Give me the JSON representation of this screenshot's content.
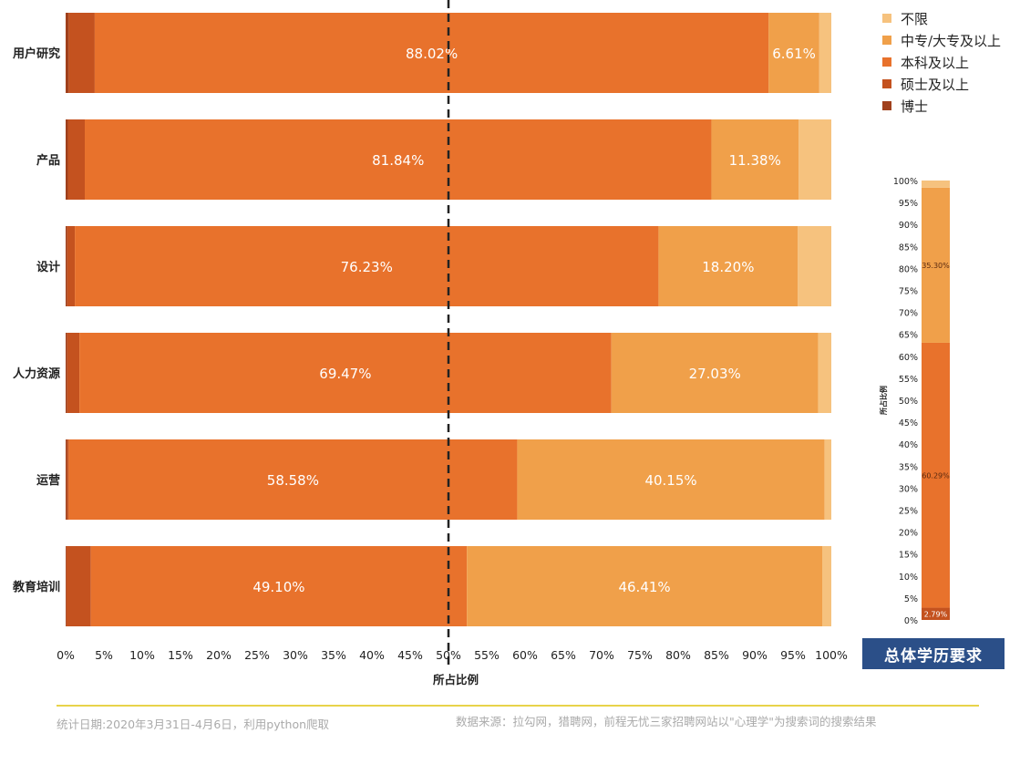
{
  "chart_data": [
    {
      "type": "bar",
      "stacked": true,
      "orientation": "horizontal",
      "xlabel": "所占比例",
      "xlim": [
        0,
        100
      ],
      "x_ticks": [
        "0%",
        "5%",
        "10%",
        "15%",
        "20%",
        "25%",
        "30%",
        "35%",
        "40%",
        "45%",
        "50%",
        "55%",
        "60%",
        "65%",
        "70%",
        "75%",
        "80%",
        "85%",
        "90%",
        "95%",
        "100%"
      ],
      "reference_line": 50,
      "categories": [
        "用户研究",
        "产品",
        "设计",
        "人力资源",
        "运营",
        "教育培训"
      ],
      "series": [
        {
          "name": "博士",
          "color": "#a0401c",
          "values": [
            0.4,
            0.3,
            0.2,
            0.2,
            0.2,
            0.1
          ]
        },
        {
          "name": "硕士及以上",
          "color": "#c4521f",
          "values": [
            3.4,
            2.2,
            1.0,
            1.6,
            0.2,
            3.2
          ]
        },
        {
          "name": "本科及以上",
          "color": "#e8722c",
          "values": [
            88.02,
            81.84,
            76.23,
            69.47,
            58.58,
            49.1
          ]
        },
        {
          "name": "中专/大专及以上",
          "color": "#f0a04a",
          "values": [
            6.61,
            11.38,
            18.2,
            27.03,
            40.15,
            46.41
          ]
        },
        {
          "name": "不限",
          "color": "#f6c27e",
          "values": [
            1.57,
            4.28,
            4.37,
            1.7,
            0.87,
            1.19
          ]
        }
      ],
      "labels": [
        [
          "88.02%",
          "6.61%"
        ],
        [
          "81.84%",
          "11.38%"
        ],
        [
          "76.23%",
          "18.20%"
        ],
        [
          "69.47%",
          "27.03%"
        ],
        [
          "58.58%",
          "40.15%"
        ],
        [
          "49.10%",
          "46.41%"
        ]
      ]
    },
    {
      "type": "bar",
      "stacked": true,
      "orientation": "vertical",
      "title": "总体学历要求",
      "ylabel": "所占比例",
      "ylim": [
        0,
        100
      ],
      "y_ticks": [
        "0%",
        "5%",
        "10%",
        "15%",
        "20%",
        "25%",
        "30%",
        "35%",
        "40%",
        "45%",
        "50%",
        "55%",
        "60%",
        "65%",
        "70%",
        "75%",
        "80%",
        "85%",
        "90%",
        "95%",
        "100%"
      ],
      "series": [
        {
          "name": "硕士及以上",
          "color": "#c4521f",
          "value": 2.79,
          "label": "2.79%"
        },
        {
          "name": "本科及以上",
          "color": "#e8722c",
          "value": 60.29,
          "label": "60.29%"
        },
        {
          "name": "中专/大专及以上",
          "color": "#f0a04a",
          "value": 35.3,
          "label": "35.30%"
        },
        {
          "name": "不限",
          "color": "#f6c27e",
          "value": 1.62,
          "label": ""
        }
      ]
    }
  ],
  "legend": [
    {
      "label": "不限",
      "color": "#f6c27e"
    },
    {
      "label": "中专/大专及以上",
      "color": "#f0a04a"
    },
    {
      "label": "本科及以上",
      "color": "#e8722c"
    },
    {
      "label": "硕士及以上",
      "color": "#c4521f"
    },
    {
      "label": "博士",
      "color": "#a0401c"
    }
  ],
  "overall_title": "总体学历要求",
  "footer": {
    "left": "统计日期:2020年3月31日-4月6日，利用python爬取",
    "right": "数据来源：拉勾网，猎聘网，前程无忧三家招聘网站以\"心理学\"为搜索词的搜索结果"
  }
}
